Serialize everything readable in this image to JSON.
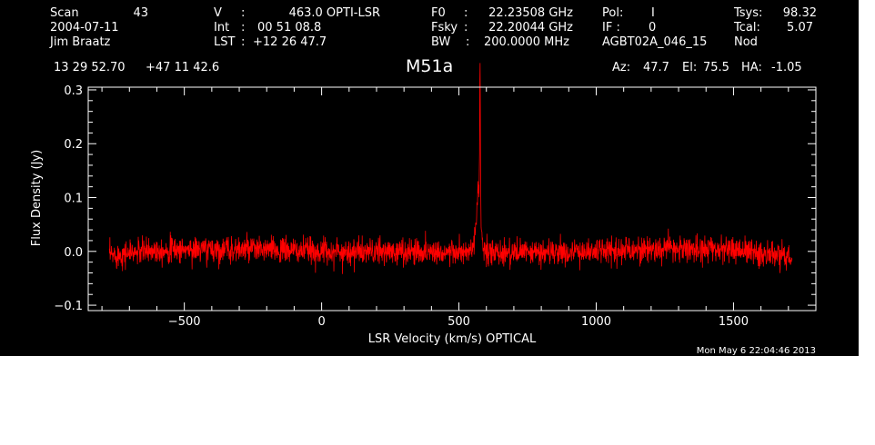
{
  "header": {
    "scan_label": "Scan",
    "scan_value": "43",
    "date": "2004-07-11",
    "observer": "Jim Braatz",
    "velocity_label": "V",
    "velocity_sep": ":",
    "velocity_value": "463.0 OPTI-LSR",
    "int_label": "Int",
    "int_sep": ":",
    "int_value": "00 51 08.8",
    "lst_label": "LST",
    "lst_sep": ":",
    "lst_value": "+12 26 47.7",
    "f0_label": "F0",
    "f0_sep": ":",
    "f0_value": "22.23508 GHz",
    "fsky_label": "Fsky",
    "fsky_sep": ":",
    "fsky_value": "22.20044 GHz",
    "bw_label": "BW",
    "bw_sep": ":",
    "bw_value": "200.0000 MHz",
    "pol_label": "Pol:",
    "pol_value": "I",
    "if_label": "IF :",
    "if_value": "0",
    "project": "AGBT02A_046_15",
    "tsys_label": "Tsys:",
    "tsys_value": "98.32",
    "tcal_label": "Tcal:",
    "tcal_value": "5.07",
    "mode": "Nod",
    "ra": "13 29 52.70",
    "dec": "+47 11 42.6",
    "source": "M51a",
    "az_label": "Az:",
    "az_value": "47.7",
    "el_label": "El:",
    "el_value": "75.5",
    "ha_label": "HA:",
    "ha_value": "-1.05"
  },
  "timestamp": "Mon May  6 22:04:46 2013",
  "colors": {
    "background": "#000000",
    "foreground": "#ffffff",
    "spectrum": "#ff0000"
  },
  "chart_data": {
    "type": "line",
    "title": "M51a",
    "xlabel": "LSR Velocity (km/s) OPTICAL",
    "ylabel": "Flux Density (Jy)",
    "xlim": [
      -850,
      1800
    ],
    "ylim": [
      -0.11,
      0.305
    ],
    "x_major_ticks": [
      -500,
      0,
      500,
      1000,
      1500
    ],
    "x_tick_labels": [
      "−500",
      "0",
      "500",
      "1000",
      "1500"
    ],
    "y_major_ticks": [
      -0.1,
      0.0,
      0.1,
      0.2,
      0.3
    ],
    "y_tick_labels": [
      "−0.1",
      "0.0",
      "0.1",
      "0.2",
      "0.3"
    ],
    "grid": false,
    "series": [
      {
        "color": "#ff0000",
        "x_start": -773,
        "x_end": 1713,
        "noise_rms": 0.012,
        "baseline_points": [
          [
            -773,
            -0.008
          ],
          [
            -600,
            0.003
          ],
          [
            -400,
            0.004
          ],
          [
            -200,
            0.003
          ],
          [
            0,
            0.0
          ],
          [
            200,
            -0.001
          ],
          [
            400,
            0.0
          ],
          [
            550,
            -0.004
          ],
          [
            700,
            -0.002
          ],
          [
            900,
            -0.002
          ],
          [
            1100,
            0.003
          ],
          [
            1300,
            0.005
          ],
          [
            1500,
            0.004
          ],
          [
            1713,
            -0.012
          ]
        ],
        "features": [
          {
            "x": 573,
            "peak": 0.085,
            "width_kms": 6
          },
          {
            "x": 568,
            "peak": 0.035,
            "width_kms": 12
          },
          {
            "x": 577,
            "peak": 0.275,
            "width_kms": 1.2
          }
        ]
      }
    ]
  }
}
